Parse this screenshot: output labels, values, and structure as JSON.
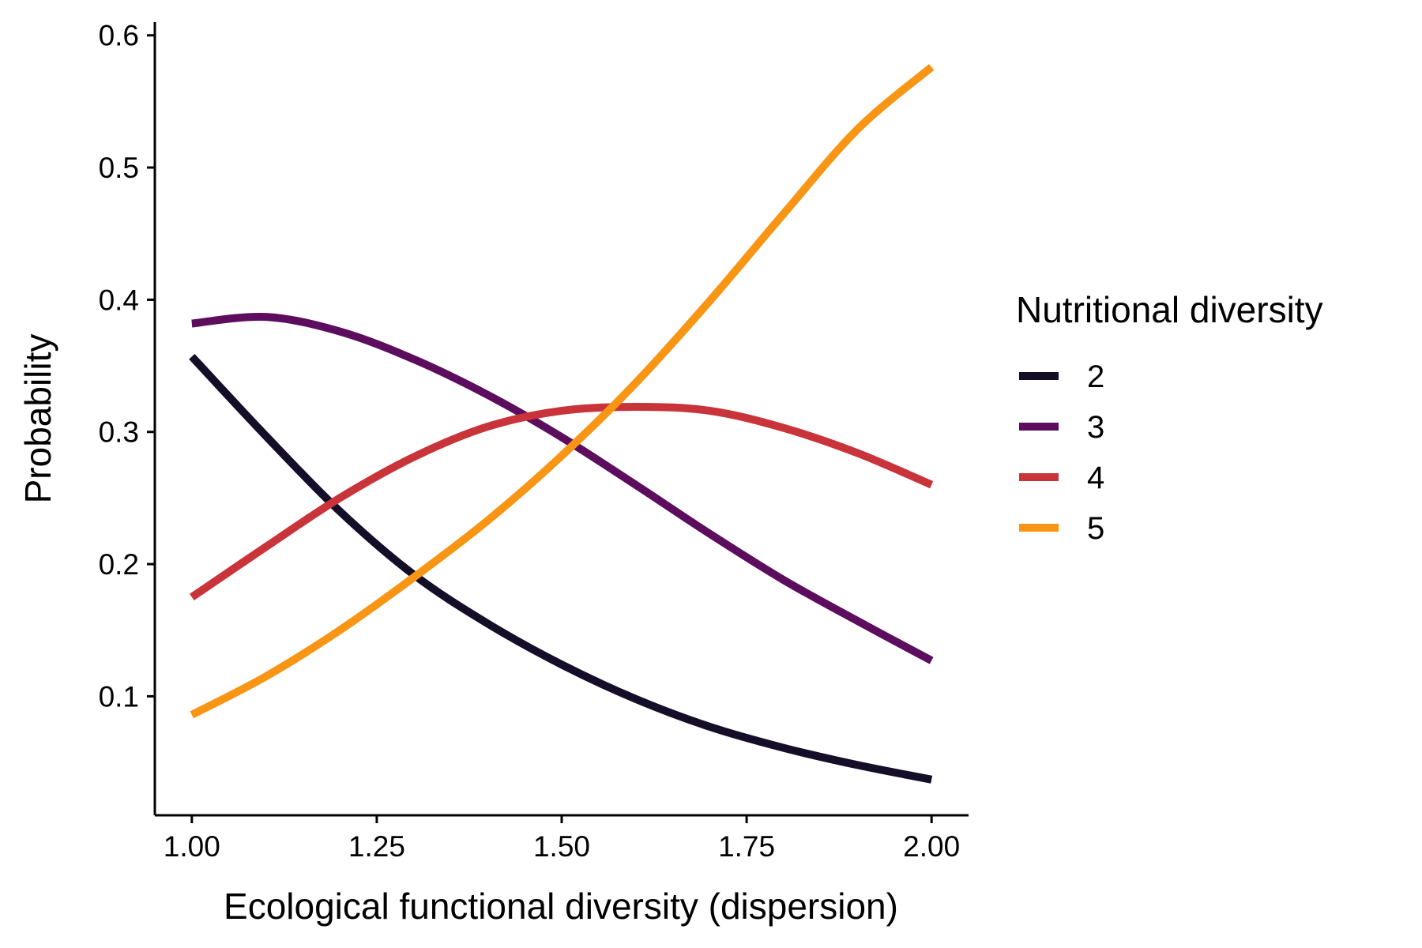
{
  "chart_data": {
    "type": "line",
    "xlabel": "Ecological functional diversity (dispersion)",
    "ylabel": "Probability",
    "xlim": [
      0.95,
      2.05
    ],
    "ylim": [
      0.01,
      0.61
    ],
    "x_ticks": [
      1.0,
      1.25,
      1.5,
      1.75,
      2.0
    ],
    "x_tick_labels": [
      "1.00",
      "1.25",
      "1.50",
      "1.75",
      "2.00"
    ],
    "y_ticks": [
      0.1,
      0.2,
      0.3,
      0.4,
      0.5,
      0.6
    ],
    "y_tick_labels": [
      "0.1",
      "0.2",
      "0.3",
      "0.4",
      "0.5",
      "0.6"
    ],
    "grid": false,
    "legend": {
      "title": "Nutritional diversity",
      "placement": "right"
    },
    "x": [
      1.0,
      1.1,
      1.2,
      1.3,
      1.4,
      1.5,
      1.6,
      1.7,
      1.8,
      1.9,
      2.0
    ],
    "series": [
      {
        "name": "2",
        "color": "#150e28",
        "values": [
          0.357,
          0.297,
          0.24,
          0.192,
          0.155,
          0.124,
          0.098,
          0.077,
          0.061,
          0.048,
          0.037
        ]
      },
      {
        "name": "3",
        "color": "#5c0d5e",
        "values": [
          0.382,
          0.387,
          0.376,
          0.355,
          0.328,
          0.296,
          0.26,
          0.223,
          0.188,
          0.157,
          0.127
        ]
      },
      {
        "name": "4",
        "color": "#c8343a",
        "values": [
          0.175,
          0.213,
          0.25,
          0.281,
          0.304,
          0.316,
          0.319,
          0.316,
          0.303,
          0.284,
          0.26
        ]
      },
      {
        "name": "5",
        "color": "#f89514",
        "values": [
          0.086,
          0.115,
          0.15,
          0.19,
          0.233,
          0.282,
          0.337,
          0.399,
          0.465,
          0.529,
          0.576
        ]
      }
    ]
  }
}
